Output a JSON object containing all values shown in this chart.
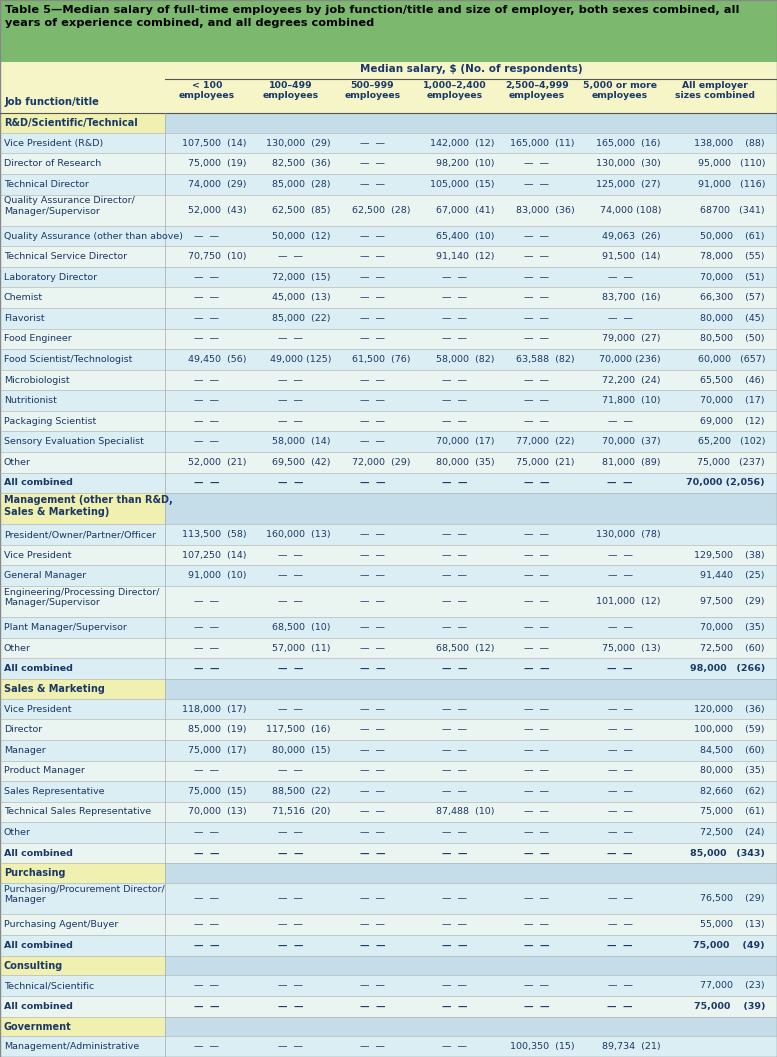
{
  "title": "Table 5—Median salary of full-time employees by job function/title and size of employer, both sexes combined, all\nyears of experience combined, and all degrees combined",
  "header_row1": "Median salary, $ (No. of respondents)",
  "col_headers": [
    "< 100\nemployees",
    "100–499\nemployees",
    "500–999\nemployees",
    "1,000–2,400\nemployees",
    "2,500–4,999\nemployees",
    "5,000 or more\nemployees",
    "All employer\nsizes combined"
  ],
  "left_col_header": "Job function/title",
  "title_bg": "#7cb96e",
  "header_bg": "#f5f5c8",
  "section_right_bg": "#c5dde8",
  "row_colors": [
    "#daeef3",
    "#eaf4f0"
  ],
  "section_label_bg": "#f0f0b0",
  "text_color": "#1a3868",
  "rows": [
    {
      "type": "section",
      "label": "R&D/Scientific/Technical",
      "lines": 1
    },
    {
      "type": "data",
      "label": "Vice President (R&D)",
      "lines": 1,
      "vals": [
        "107,500  (14)",
        "130,000  (29)",
        "—  —",
        "142,000  (12)",
        "165,000  (11)",
        "165,000  (16)",
        "138,000    (88)"
      ]
    },
    {
      "type": "data",
      "label": "Director of Research",
      "lines": 1,
      "vals": [
        "75,000  (19)",
        "82,500  (36)",
        "—  —",
        "98,200  (10)",
        "—  —",
        "130,000  (30)",
        "95,000   (110)"
      ]
    },
    {
      "type": "data",
      "label": "Technical Director",
      "lines": 1,
      "vals": [
        "74,000  (29)",
        "85,000  (28)",
        "—  —",
        "105,000  (15)",
        "—  —",
        "125,000  (27)",
        "91,000   (116)"
      ]
    },
    {
      "type": "data",
      "label": "Quality Assurance Director/\nManager/Supervisor",
      "lines": 2,
      "vals": [
        "52,000  (43)",
        "62,500  (85)",
        "62,500  (28)",
        "67,000  (41)",
        "83,000  (36)",
        "74,000 (108)",
        "68700   (341)"
      ]
    },
    {
      "type": "data",
      "label": "Quality Assurance (other than above)",
      "lines": 1,
      "vals": [
        "—  —",
        "50,000  (12)",
        "—  —",
        "65,400  (10)",
        "—  —",
        "49,063  (26)",
        "50,000    (61)"
      ]
    },
    {
      "type": "data",
      "label": "Technical Service Director",
      "lines": 1,
      "vals": [
        "70,750  (10)",
        "—  —",
        "—  —",
        "91,140  (12)",
        "—  —",
        "91,500  (14)",
        "78,000    (55)"
      ]
    },
    {
      "type": "data",
      "label": "Laboratory Director",
      "lines": 1,
      "vals": [
        "—  —",
        "72,000  (15)",
        "—  —",
        "—  —",
        "—  —",
        "—  —",
        "70,000    (51)"
      ]
    },
    {
      "type": "data",
      "label": "Chemist",
      "lines": 1,
      "vals": [
        "—  —",
        "45,000  (13)",
        "—  —",
        "—  —",
        "—  —",
        "83,700  (16)",
        "66,300    (57)"
      ]
    },
    {
      "type": "data",
      "label": "Flavorist",
      "lines": 1,
      "vals": [
        "—  —",
        "85,000  (22)",
        "—  —",
        "—  —",
        "—  —",
        "—  —",
        "80,000    (45)"
      ]
    },
    {
      "type": "data",
      "label": "Food Engineer",
      "lines": 1,
      "vals": [
        "—  —",
        "—  —",
        "—  —",
        "—  —",
        "—  —",
        "79,000  (27)",
        "80,500    (50)"
      ]
    },
    {
      "type": "data",
      "label": "Food Scientist/Technologist",
      "lines": 1,
      "vals": [
        "49,450  (56)",
        "49,000 (125)",
        "61,500  (76)",
        "58,000  (82)",
        "63,588  (82)",
        "70,000 (236)",
        "60,000   (657)"
      ]
    },
    {
      "type": "data",
      "label": "Microbiologist",
      "lines": 1,
      "vals": [
        "—  —",
        "—  —",
        "—  —",
        "—  —",
        "—  —",
        "72,200  (24)",
        "65,500    (46)"
      ]
    },
    {
      "type": "data",
      "label": "Nutritionist",
      "lines": 1,
      "vals": [
        "—  —",
        "—  —",
        "—  —",
        "—  —",
        "—  —",
        "71,800  (10)",
        "70,000    (17)"
      ]
    },
    {
      "type": "data",
      "label": "Packaging Scientist",
      "lines": 1,
      "vals": [
        "—  —",
        "—  —",
        "—  —",
        "—  —",
        "—  —",
        "—  —",
        "69,000    (12)"
      ]
    },
    {
      "type": "data",
      "label": "Sensory Evaluation Specialist",
      "lines": 1,
      "vals": [
        "—  —",
        "58,000  (14)",
        "—  —",
        "70,000  (17)",
        "77,000  (22)",
        "70,000  (37)",
        "65,200   (102)"
      ]
    },
    {
      "type": "data",
      "label": "Other",
      "lines": 1,
      "vals": [
        "52,000  (21)",
        "69,500  (42)",
        "72,000  (29)",
        "80,000  (35)",
        "75,000  (21)",
        "81,000  (89)",
        "75,000   (237)"
      ]
    },
    {
      "type": "combined",
      "label": "All combined",
      "lines": 1,
      "vals": [
        "—  —",
        "—  —",
        "—  —",
        "—  —",
        "—  —",
        "—  —",
        "70,000 (2,056)"
      ]
    },
    {
      "type": "section",
      "label": "Management (other than R&D,\nSales & Marketing)",
      "lines": 2
    },
    {
      "type": "data",
      "label": "President/Owner/Partner/Officer",
      "lines": 1,
      "vals": [
        "113,500  (58)",
        "160,000  (13)",
        "—  —",
        "—  —",
        "—  —",
        "130,000  (78)",
        ""
      ]
    },
    {
      "type": "data",
      "label": "Vice President",
      "lines": 1,
      "vals": [
        "107,250  (14)",
        "—  —",
        "—  —",
        "—  —",
        "—  —",
        "—  —",
        "129,500    (38)"
      ]
    },
    {
      "type": "data",
      "label": "General Manager",
      "lines": 1,
      "vals": [
        "91,000  (10)",
        "—  —",
        "—  —",
        "—  —",
        "—  —",
        "—  —",
        "91,440    (25)"
      ]
    },
    {
      "type": "data",
      "label": "Engineering/Processing Director/\nManager/Supervisor",
      "lines": 2,
      "vals": [
        "—  —",
        "—  —",
        "—  —",
        "—  —",
        "—  —",
        "101,000  (12)",
        "97,500    (29)"
      ]
    },
    {
      "type": "data",
      "label": "Plant Manager/Supervisor",
      "lines": 1,
      "vals": [
        "—  —",
        "68,500  (10)",
        "—  —",
        "—  —",
        "—  —",
        "—  —",
        "70,000    (35)"
      ]
    },
    {
      "type": "data",
      "label": "Other",
      "lines": 1,
      "vals": [
        "—  —",
        "57,000  (11)",
        "—  —",
        "68,500  (12)",
        "—  —",
        "75,000  (13)",
        "72,500    (60)"
      ]
    },
    {
      "type": "combined",
      "label": "All combined",
      "lines": 1,
      "vals": [
        "—  —",
        "—  —",
        "—  —",
        "—  —",
        "—  —",
        "—  —",
        "98,000   (266)"
      ]
    },
    {
      "type": "section",
      "label": "Sales & Marketing",
      "lines": 1
    },
    {
      "type": "data",
      "label": "Vice President",
      "lines": 1,
      "vals": [
        "118,000  (17)",
        "—  —",
        "—  —",
        "—  —",
        "—  —",
        "—  —",
        "120,000    (36)"
      ]
    },
    {
      "type": "data",
      "label": "Director",
      "lines": 1,
      "vals": [
        "85,000  (19)",
        "117,500  (16)",
        "—  —",
        "—  —",
        "—  —",
        "—  —",
        "100,000    (59)"
      ]
    },
    {
      "type": "data",
      "label": "Manager",
      "lines": 1,
      "vals": [
        "75,000  (17)",
        "80,000  (15)",
        "—  —",
        "—  —",
        "—  —",
        "—  —",
        "84,500    (60)"
      ]
    },
    {
      "type": "data",
      "label": "Product Manager",
      "lines": 1,
      "vals": [
        "—  —",
        "—  —",
        "—  —",
        "—  —",
        "—  —",
        "—  —",
        "80,000    (35)"
      ]
    },
    {
      "type": "data",
      "label": "Sales Representative",
      "lines": 1,
      "vals": [
        "75,000  (15)",
        "88,500  (22)",
        "—  —",
        "—  —",
        "—  —",
        "—  —",
        "82,660    (62)"
      ]
    },
    {
      "type": "data",
      "label": "Technical Sales Representative",
      "lines": 1,
      "vals": [
        "70,000  (13)",
        "71,516  (20)",
        "—  —",
        "87,488  (10)",
        "—  —",
        "—  —",
        "75,000    (61)"
      ]
    },
    {
      "type": "data",
      "label": "Other",
      "lines": 1,
      "vals": [
        "—  —",
        "—  —",
        "—  —",
        "—  —",
        "—  —",
        "—  —",
        "72,500    (24)"
      ]
    },
    {
      "type": "combined",
      "label": "All combined",
      "lines": 1,
      "vals": [
        "—  —",
        "—  —",
        "—  —",
        "—  —",
        "—  —",
        "—  —",
        "85,000   (343)"
      ]
    },
    {
      "type": "section",
      "label": "Purchasing",
      "lines": 1
    },
    {
      "type": "data",
      "label": "Purchasing/Procurement Director/\nManager",
      "lines": 2,
      "vals": [
        "—  —",
        "—  —",
        "—  —",
        "—  —",
        "—  —",
        "—  —",
        "76,500    (29)"
      ]
    },
    {
      "type": "data",
      "label": "Purchasing Agent/Buyer",
      "lines": 1,
      "vals": [
        "—  —",
        "—  —",
        "—  —",
        "—  —",
        "—  —",
        "—  —",
        "55,000    (13)"
      ]
    },
    {
      "type": "combined",
      "label": "All combined",
      "lines": 1,
      "vals": [
        "—  —",
        "—  —",
        "—  —",
        "—  —",
        "—  —",
        "—  —",
        "75,000    (49)"
      ]
    },
    {
      "type": "section",
      "label": "Consulting",
      "lines": 1
    },
    {
      "type": "data",
      "label": "Technical/Scientific",
      "lines": 1,
      "vals": [
        "—  —",
        "—  —",
        "—  —",
        "—  —",
        "—  —",
        "—  —",
        "77,000    (23)"
      ]
    },
    {
      "type": "combined",
      "label": "All combined",
      "lines": 1,
      "vals": [
        "—  —",
        "—  —",
        "—  —",
        "—  —",
        "—  —",
        "—  —",
        "75,000    (39)"
      ]
    },
    {
      "type": "section",
      "label": "Government",
      "lines": 1
    },
    {
      "type": "data",
      "label": "Management/Administrative",
      "lines": 1,
      "vals": [
        "—  —",
        "—  —",
        "—  —",
        "—  —",
        "100,350  (15)",
        "89,734  (21)",
        ""
      ]
    }
  ]
}
